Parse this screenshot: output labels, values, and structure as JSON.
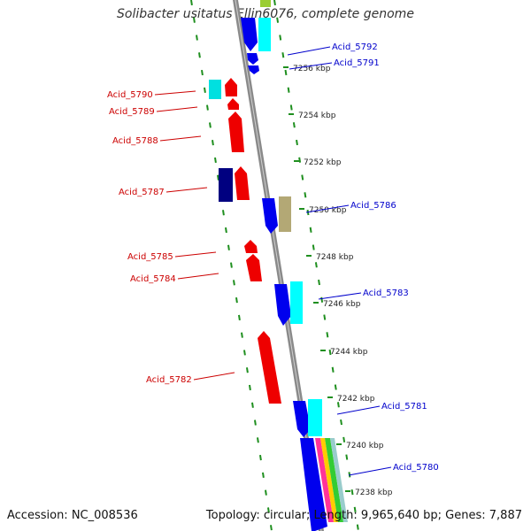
{
  "title": "Solibacter usitatus Ellin6076, complete genome",
  "footer": {
    "accession": "Accession: NC_008536",
    "summary": "Topology: circular; Length: 9,965,640 bp; Genes: 7,887"
  },
  "ticks": [
    {
      "label": "7256 kbp"
    },
    {
      "label": "7254 kbp"
    },
    {
      "label": "7252 kbp"
    },
    {
      "label": "7250 kbp"
    },
    {
      "label": "7248 kbp"
    },
    {
      "label": "7246 kbp"
    },
    {
      "label": "7244 kbp"
    },
    {
      "label": "7242 kbp"
    },
    {
      "label": "7240 kbp"
    },
    {
      "label": "7238 kbp"
    }
  ],
  "genes_reverse": [
    {
      "label": "Acid_5790",
      "color": "#cc0000"
    },
    {
      "label": "Acid_5789",
      "color": "#cc0000"
    },
    {
      "label": "Acid_5788",
      "color": "#cc0000"
    },
    {
      "label": "Acid_5787",
      "color": "#cc0000"
    },
    {
      "label": "Acid_5785",
      "color": "#cc0000"
    },
    {
      "label": "Acid_5784",
      "color": "#cc0000"
    },
    {
      "label": "Acid_5782",
      "color": "#cc0000"
    }
  ],
  "genes_forward": [
    {
      "label": "Acid_5792",
      "color": "#0000cc"
    },
    {
      "label": "Acid_5791",
      "color": "#0000cc"
    },
    {
      "label": "Acid_5786",
      "color": "#0000cc"
    },
    {
      "label": "Acid_5783",
      "color": "#0000cc"
    },
    {
      "label": "Acid_5781",
      "color": "#0000cc"
    },
    {
      "label": "Acid_5780",
      "color": "#0000cc"
    }
  ],
  "colors": {
    "backbone": "#888888",
    "dots": "#228b22",
    "forward": "#0000ff",
    "reverse": "#ff0000",
    "cyan": "#00e5e5",
    "olive": "#b3a875",
    "navy": "#000080"
  }
}
